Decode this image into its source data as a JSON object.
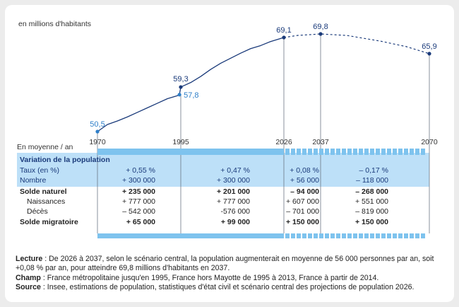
{
  "chart_data": {
    "type": "line",
    "unit_label": "en millions d'habitants",
    "x_ticks": [
      "1970",
      "1995",
      "2026",
      "2037",
      "2070"
    ],
    "series": [
      {
        "name": "",
        "kind": "observed",
        "points": [
          {
            "x": 1970,
            "y": 50.5
          },
          {
            "x": 1973,
            "y": 51.9
          },
          {
            "x": 1976,
            "y": 52.6
          },
          {
            "x": 1979,
            "y": 53.4
          },
          {
            "x": 1982,
            "y": 54.3
          },
          {
            "x": 1985,
            "y": 55.2
          },
          {
            "x": 1988,
            "y": 56.1
          },
          {
            "x": 1991,
            "y": 57.0
          },
          {
            "x": 1994,
            "y": 57.6
          },
          {
            "x": 1995,
            "y": 59.3
          },
          {
            "x": 1998,
            "y": 60.2
          },
          {
            "x": 2001,
            "y": 61.4
          },
          {
            "x": 2004,
            "y": 62.8
          },
          {
            "x": 2007,
            "y": 64.0
          },
          {
            "x": 2010,
            "y": 65.0
          },
          {
            "x": 2013,
            "y": 66.0
          },
          {
            "x": 2016,
            "y": 66.9
          },
          {
            "x": 2019,
            "y": 67.5
          },
          {
            "x": 2022,
            "y": 68.3
          },
          {
            "x": 2026,
            "y": 69.1
          }
        ]
      },
      {
        "name": "",
        "kind": "projection",
        "points": [
          {
            "x": 2026,
            "y": 69.1
          },
          {
            "x": 2030,
            "y": 69.5
          },
          {
            "x": 2037,
            "y": 69.8
          },
          {
            "x": 2045,
            "y": 69.5
          },
          {
            "x": 2055,
            "y": 68.4
          },
          {
            "x": 2063,
            "y": 67.3
          },
          {
            "x": 2070,
            "y": 65.9
          }
        ]
      }
    ],
    "labels": [
      {
        "text": "50,5",
        "x": 1970,
        "y": 50.5,
        "color": "#2e7fc9"
      },
      {
        "text": "57,8",
        "x": 1994.6,
        "y": 57.8,
        "color": "#2e7fc9"
      },
      {
        "text": "59,3",
        "x": 1995,
        "y": 59.3,
        "color": "#1a3a7a"
      },
      {
        "text": "69,1",
        "x": 2026,
        "y": 69.1,
        "color": "#1a3a7a"
      },
      {
        "text": "69,8",
        "x": 2037,
        "y": 69.8,
        "color": "#1a3a7a"
      },
      {
        "text": "65,9",
        "x": 2070,
        "y": 65.9,
        "color": "#1a3a7a"
      }
    ],
    "colors": {
      "line": "#1a3a7a",
      "marker_light": "#2e7fc9",
      "band": "#bde0f8",
      "band_bar": "#7ec3ee"
    }
  },
  "table": {
    "header": "En moyenne / an",
    "section_title": "Variation de la population",
    "rows": [
      {
        "label": "Taux (en %)",
        "indent": false,
        "bold": false,
        "highlight": true,
        "values": [
          "+ 0,55 %",
          "+ 0,47 %",
          "+ 0,08 %",
          "– 0,17 %"
        ]
      },
      {
        "label": "Nombre",
        "indent": false,
        "bold": false,
        "highlight": true,
        "values": [
          "+ 300 000",
          "+ 300 000",
          "+ 56 000",
          "– 118 000"
        ]
      },
      {
        "label": "Solde naturel",
        "indent": false,
        "bold": true,
        "highlight": false,
        "values": [
          "+ 235 000",
          "+ 201 000",
          "– 94 000",
          "– 268 000"
        ]
      },
      {
        "label": "Naissances",
        "indent": true,
        "bold": false,
        "highlight": false,
        "values": [
          "+ 777 000",
          "+ 777 000",
          "+ 607 000",
          "+ 551 000"
        ]
      },
      {
        "label": "Décès",
        "indent": true,
        "bold": false,
        "highlight": false,
        "values": [
          "– 542 000",
          "-576 000",
          "– 701 000",
          "– 819 000"
        ]
      },
      {
        "label": "Solde migratoire",
        "indent": false,
        "bold": true,
        "highlight": false,
        "values": [
          "+ 65 000",
          "+ 99 000",
          "+ 150 000",
          "+ 150 000"
        ]
      }
    ]
  },
  "notes": {
    "lecture_label": "Lecture",
    "lecture_text": " : De 2026 à 2037, selon le scénario central, la population augmenterait en moyenne de 56 000 personnes par an, soit +0,08 % par an, pour atteindre 69,8 millions d'habitants en 2037.",
    "champ_label": "Champ",
    "champ_text": " : France métropolitaine jusqu'en 1995, France hors Mayotte de 1995 à 2013, France à partir de 2014.",
    "source_label": "Source",
    "source_text": " : Insee, estimations de population, statistiques d'état civil et scénario central des projections de population 2026."
  }
}
